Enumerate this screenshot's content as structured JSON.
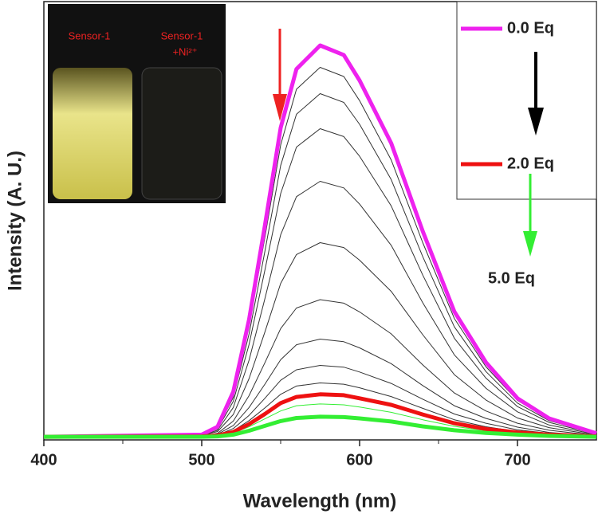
{
  "chart_data": {
    "type": "line",
    "xlabel": "Wavelength (nm)",
    "ylabel": "Intensity (A. U.)",
    "x": [
      400,
      500,
      510,
      520,
      530,
      540,
      550,
      560,
      575,
      590,
      600,
      620,
      640,
      660,
      680,
      700,
      720,
      750
    ],
    "xlim": [
      400,
      750
    ],
    "xticks": [
      400,
      500,
      600,
      700
    ],
    "xminorticks": [
      450,
      550,
      650
    ],
    "ylim": [
      0,
      100
    ],
    "series": [
      {
        "name": "0.0 Eq",
        "color": "#ee22ee",
        "width": 5,
        "values": [
          0.7,
          1.2,
          3.0,
          11.0,
          27.5,
          48.9,
          71.2,
          84.6,
          90,
          87.8,
          82.0,
          67.7,
          47.6,
          29.3,
          17.7,
          9.5,
          4.9,
          1.5
        ]
      },
      {
        "color": "#333333",
        "width": 1,
        "values": [
          0.7,
          1.2,
          2.9,
          10.4,
          26.0,
          46.2,
          67.3,
          80.0,
          85,
          82.9,
          77.4,
          63.9,
          45.0,
          27.7,
          16.7,
          9.0,
          4.7,
          1.5
        ]
      },
      {
        "color": "#333333",
        "width": 1,
        "values": [
          0.7,
          1.2,
          2.7,
          9.7,
          24.2,
          43.0,
          62.6,
          74.3,
          79,
          77.0,
          72.0,
          59.4,
          41.8,
          25.8,
          15.6,
          8.4,
          4.4,
          1.4
        ]
      },
      {
        "color": "#333333",
        "width": 1,
        "values": [
          0.7,
          1.1,
          2.5,
          8.8,
          21.8,
          38.7,
          56.2,
          66.8,
          71,
          69.2,
          64.7,
          53.4,
          37.6,
          23.2,
          14.1,
          7.6,
          4.0,
          1.3
        ]
      },
      {
        "color": "#333333",
        "width": 1,
        "values": [
          0.7,
          1.0,
          2.2,
          7.4,
          18.2,
          32.2,
          46.8,
          55.5,
          59,
          57.5,
          53.8,
          44.4,
          31.3,
          19.4,
          11.8,
          6.4,
          3.4,
          1.2
        ]
      },
      {
        "color": "#333333",
        "width": 1,
        "values": [
          0.7,
          1.0,
          1.9,
          5.8,
          14.0,
          24.6,
          35.7,
          42.3,
          45,
          43.9,
          41.0,
          33.9,
          24.0,
          14.9,
          9.1,
          5.0,
          2.8,
          1.1
        ]
      },
      {
        "color": "#333333",
        "width": 1,
        "values": [
          0.7,
          0.9,
          1.5,
          4.3,
          10.1,
          17.6,
          25.4,
          30.1,
          32,
          31.2,
          29.2,
          24.2,
          17.1,
          10.7,
          6.6,
          3.8,
          2.2,
          1.0
        ]
      },
      {
        "color": "#333333",
        "width": 1,
        "values": [
          0.7,
          0.8,
          1.3,
          3.3,
          7.4,
          12.7,
          18.3,
          21.7,
          23,
          22.4,
          21.0,
          17.4,
          12.4,
          7.8,
          4.9,
          2.9,
          1.7,
          0.9
        ]
      },
      {
        "color": "#333333",
        "width": 1,
        "values": [
          0.7,
          0.8,
          1.1,
          2.6,
          5.6,
          9.5,
          13.6,
          16.0,
          17,
          16.6,
          15.5,
          12.9,
          9.3,
          5.9,
          3.8,
          2.3,
          1.5,
          0.8
        ]
      },
      {
        "color": "#333333",
        "width": 1,
        "values": [
          0.7,
          0.8,
          1.0,
          2.1,
          4.4,
          7.3,
          10.4,
          12.3,
          13,
          12.7,
          11.9,
          9.9,
          7.2,
          4.6,
          3.0,
          1.9,
          1.3,
          0.8
        ]
      },
      {
        "name": "2.0 Eq",
        "color": "#ee1111",
        "width": 5,
        "values": [
          0.7,
          0.8,
          1.0,
          1.8,
          3.6,
          5.9,
          8.4,
          9.8,
          10.4,
          10.2,
          9.5,
          8.0,
          5.8,
          3.8,
          2.5,
          1.7,
          1.2,
          0.8
        ]
      },
      {
        "color": "#33ee33",
        "width": 1,
        "values": [
          0.7,
          0.7,
          0.9,
          1.6,
          3.0,
          4.8,
          6.6,
          7.8,
          8.2,
          8.0,
          7.5,
          6.3,
          4.6,
          3.1,
          2.1,
          1.4,
          1.1,
          0.8
        ]
      },
      {
        "name": "5.0 Eq",
        "color": "#33ee33",
        "width": 5,
        "values": [
          0.7,
          0.7,
          0.8,
          1.2,
          2.1,
          3.2,
          4.3,
          5.0,
          5.3,
          5.2,
          4.9,
          4.2,
          3.1,
          2.2,
          1.6,
          1.2,
          0.9,
          0.7
        ]
      }
    ],
    "inset_labels": [
      "Sensor-1",
      "Sensor-1",
      "+Ni²⁺"
    ]
  }
}
